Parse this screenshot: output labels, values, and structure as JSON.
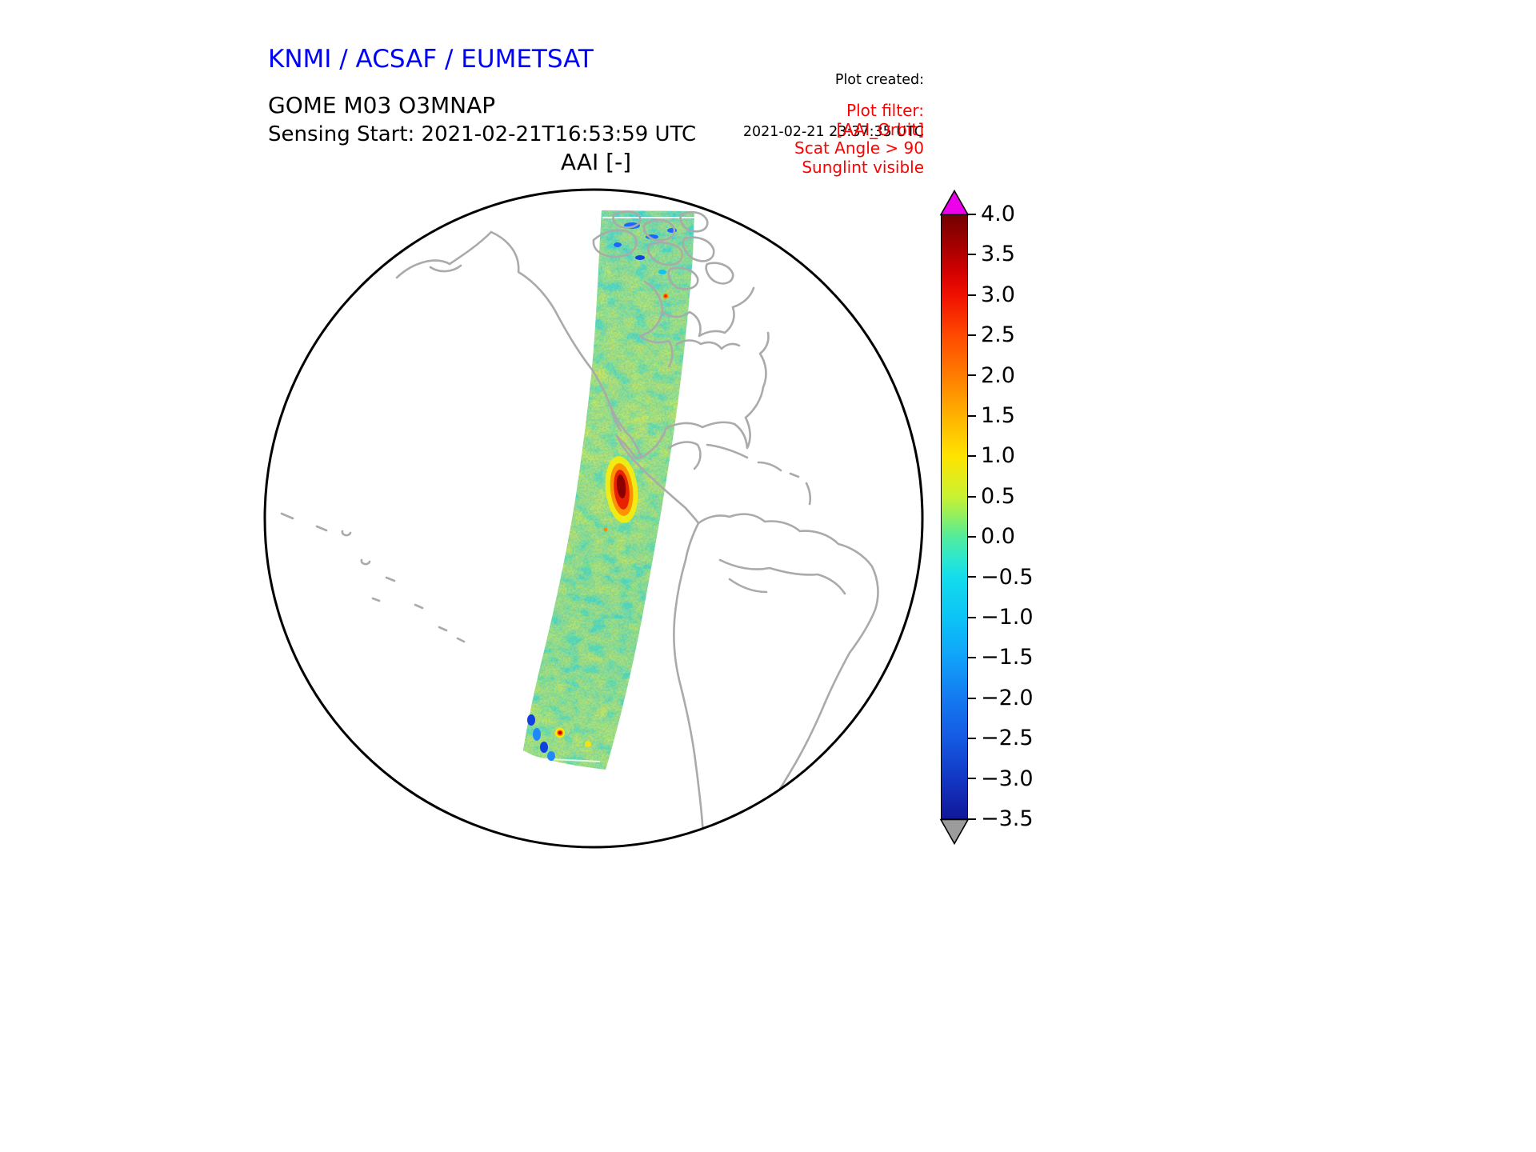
{
  "header": {
    "org_title": "KNMI / ACSAF / EUMETSAT",
    "created_label": "Plot created:",
    "created_value": "2021-02-21 23:37:35 UTC",
    "product": "GOME M03 O3MNAP",
    "sensing_start": "Sensing Start: 2021-02-21T16:53:59 UTC",
    "map_title": "AAI [-]"
  },
  "filter_note": {
    "lines": [
      "Plot filter:",
      "[AAI_Orbit]",
      "Scat Angle > 90",
      "Sunglint visible"
    ]
  },
  "colors": {
    "org_title_blue": "#0000ff",
    "filter_red": "#ff0000",
    "coastline_gray": "#aaaaaa",
    "colorbar_over": "#ec00ec",
    "colorbar_under": "#9c9c9c"
  },
  "colorbar_tick_labels": [
    "4.0",
    "3.5",
    "3.0",
    "2.5",
    "2.0",
    "1.5",
    "1.0",
    "0.5",
    "0.0",
    "−0.5",
    "−1.0",
    "−1.5",
    "−2.0",
    "−2.5",
    "−3.0",
    "−3.5"
  ],
  "chart_data": {
    "type": "heatmap",
    "title": "AAI [-]",
    "product": "GOME M03 O3MNAP",
    "sensing_start_utc": "2021-02-21T16:53:59",
    "plot_created_utc": "2021-02-21 23:37:35",
    "projection": "orthographic globe (Americas / eastern Pacific hemisphere)",
    "colorbar": {
      "label": "AAI [-]",
      "vmin": -3.5,
      "vmax": 4.0,
      "ticks": [
        4.0,
        3.5,
        3.0,
        2.5,
        2.0,
        1.5,
        1.0,
        0.5,
        0.0,
        -0.5,
        -1.0,
        -1.5,
        -2.0,
        -2.5,
        -3.0,
        -3.5
      ],
      "extend": "both",
      "over_color": "magenta",
      "under_color": "gray",
      "colormap_stops_top_to_bottom": [
        "#730000",
        "#d40000",
        "#ff4a00",
        "#ff7e00",
        "#ffb200",
        "#ffe400",
        "#c8f232",
        "#86ee6a",
        "#52ec9c",
        "#2ce8cf",
        "#14dcec",
        "#0cc4f6",
        "#10a2fa",
        "#147af0",
        "#155ae2",
        "#1238c4",
        "#11189a"
      ]
    },
    "swath_summary": {
      "description": "Single descending satellite orbit swath of Absorbing Aerosol Index values running from the Canadian Arctic across western Mexico down to central South America; background mostly green/cyan",
      "typical_background_range": [
        -1.0,
        1.5
      ],
      "notable_features": [
        {
          "feature": "strong positive AAI plume (deep red/dark red core)",
          "approx_value": 3.5,
          "location_on_map": "southern Mexico / eastern Pacific section of swath"
        },
        {
          "feature": "small positive AAI spot (red/orange)",
          "approx_value": 3.0,
          "location_on_map": "near the southern end of the swath"
        },
        {
          "feature": "negative AAI patches (blue specks)",
          "approx_value": -2.0,
          "location_on_map": "Arctic section and lower-left swath edge"
        }
      ],
      "filters_applied": [
        "Scat Angle > 90",
        "Sunglint visible"
      ]
    }
  }
}
